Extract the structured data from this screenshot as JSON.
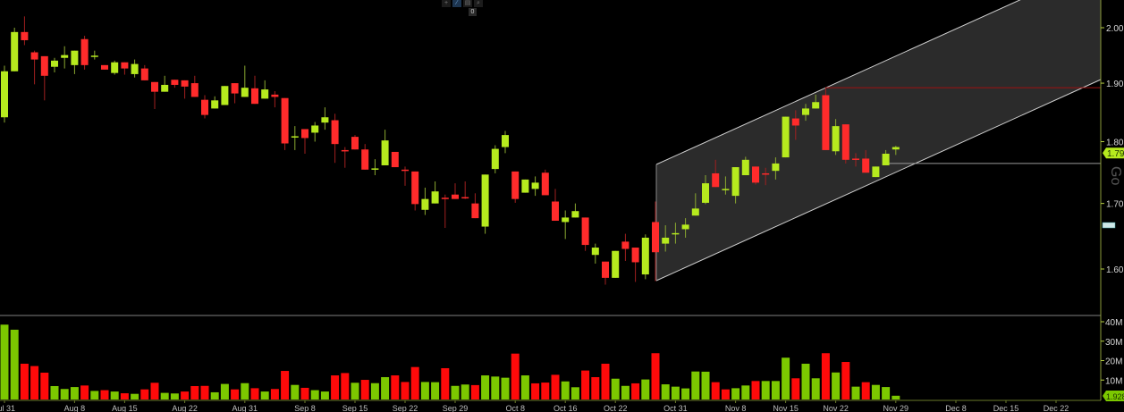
{
  "toolbar": {
    "icons": [
      "crosshair-icon",
      "draw-icon",
      "layout-icon",
      "zoom-icon"
    ],
    "badge": "0"
  },
  "side_label": "Go",
  "colors": {
    "up": "#b6ea1e",
    "down": "#ff2b2b",
    "volume_up": "#7cc800",
    "volume_down": "#ff0a0a",
    "axis": "#9aa84a",
    "channel_fill": "#2b2b2b"
  },
  "chart_data": {
    "type": "candlestick",
    "scale": "log",
    "ylim": [
      1.55,
      2.03
    ],
    "y_ticks": [
      "2.00",
      "1.90",
      "1.80",
      "1.70",
      "1.60"
    ],
    "x_ticks": [
      "Jul 31",
      "Aug 8",
      "Aug 15",
      "Aug 22",
      "Aug 31",
      "Sep 8",
      "Sep 15",
      "Sep 22",
      "Sep 29",
      "Oct 8",
      "Oct 16",
      "Oct 22",
      "Oct 31",
      "Nov 8",
      "Nov 15",
      "Nov 22",
      "Nov 29",
      "Dec 8",
      "Dec 15",
      "Dec 22"
    ],
    "last_price": "1.79",
    "candles_ohlc": [
      [
        1.841,
        1.931,
        1.832,
        1.921
      ],
      [
        1.921,
        2.0,
        1.921,
        1.992
      ],
      [
        1.992,
        2.021,
        1.968,
        1.977
      ],
      [
        1.955,
        1.958,
        1.898,
        1.942
      ],
      [
        1.948,
        1.948,
        1.87,
        1.913
      ],
      [
        1.929,
        1.945,
        1.919,
        1.94
      ],
      [
        1.945,
        1.966,
        1.926,
        1.95
      ],
      [
        1.932,
        1.958,
        1.916,
        1.958
      ],
      [
        1.979,
        1.985,
        1.924,
        1.932
      ],
      [
        1.948,
        1.958,
        1.942,
        1.949
      ],
      [
        1.932,
        1.932,
        1.924,
        1.924
      ],
      [
        1.918,
        1.94,
        1.915,
        1.937
      ],
      [
        1.937,
        1.937,
        1.915,
        1.926
      ],
      [
        1.916,
        1.942,
        1.91,
        1.934
      ],
      [
        1.926,
        1.932,
        1.905,
        1.905
      ],
      [
        1.902,
        1.902,
        1.855,
        1.885
      ],
      [
        1.885,
        1.913,
        1.885,
        1.897
      ],
      [
        1.906,
        1.906,
        1.892,
        1.897
      ],
      [
        1.905,
        1.905,
        1.873,
        1.894
      ],
      [
        1.9,
        1.913,
        1.876,
        1.876
      ],
      [
        1.871,
        1.879,
        1.839,
        1.845
      ],
      [
        1.856,
        1.877,
        1.856,
        1.87
      ],
      [
        1.862,
        1.895,
        1.862,
        1.895
      ],
      [
        1.9,
        1.9,
        1.865,
        1.882
      ],
      [
        1.876,
        1.931,
        1.876,
        1.892
      ],
      [
        1.891,
        1.913,
        1.864,
        1.864
      ],
      [
        1.873,
        1.905,
        1.873,
        1.889
      ],
      [
        1.88,
        1.886,
        1.858,
        1.876
      ],
      [
        1.874,
        1.874,
        1.786,
        1.797
      ],
      [
        1.808,
        1.826,
        1.786,
        1.809
      ],
      [
        1.821,
        1.821,
        1.78,
        1.806
      ],
      [
        1.815,
        1.833,
        1.8,
        1.827
      ],
      [
        1.832,
        1.858,
        1.82,
        1.841
      ],
      [
        1.836,
        1.847,
        1.765,
        1.796
      ],
      [
        1.786,
        1.791,
        1.757,
        1.785
      ],
      [
        1.808,
        1.811,
        1.787,
        1.787
      ],
      [
        1.787,
        1.796,
        1.754,
        1.754
      ],
      [
        1.755,
        1.771,
        1.745,
        1.756
      ],
      [
        1.761,
        1.82,
        1.761,
        1.802
      ],
      [
        1.783,
        1.783,
        1.758,
        1.758
      ],
      [
        1.754,
        1.759,
        1.728,
        1.753
      ],
      [
        1.751,
        1.751,
        1.689,
        1.699
      ],
      [
        1.69,
        1.725,
        1.682,
        1.707
      ],
      [
        1.7,
        1.735,
        1.7,
        1.719
      ],
      [
        1.709,
        1.714,
        1.662,
        1.708
      ],
      [
        1.714,
        1.732,
        1.707,
        1.707
      ],
      [
        1.71,
        1.735,
        1.707,
        1.709
      ],
      [
        1.7,
        1.716,
        1.677,
        1.677
      ],
      [
        1.664,
        1.746,
        1.653,
        1.746
      ],
      [
        1.755,
        1.794,
        1.748,
        1.788
      ],
      [
        1.791,
        1.818,
        1.781,
        1.811
      ],
      [
        1.751,
        1.751,
        1.701,
        1.707
      ],
      [
        1.717,
        1.738,
        1.717,
        1.738
      ],
      [
        1.723,
        1.743,
        1.712,
        1.733
      ],
      [
        1.749,
        1.754,
        1.713,
        1.713
      ],
      [
        1.703,
        1.723,
        1.673,
        1.673
      ],
      [
        1.671,
        1.689,
        1.645,
        1.678
      ],
      [
        1.678,
        1.7,
        1.678,
        1.688
      ],
      [
        1.678,
        1.678,
        1.627,
        1.636
      ],
      [
        1.621,
        1.638,
        1.608,
        1.632
      ],
      [
        1.611,
        1.611,
        1.577,
        1.587
      ],
      [
        1.587,
        1.627,
        1.587,
        1.627
      ],
      [
        1.641,
        1.653,
        1.612,
        1.63
      ],
      [
        1.632,
        1.632,
        1.581,
        1.61
      ],
      [
        1.592,
        1.652,
        1.585,
        1.647
      ],
      [
        1.671,
        1.703,
        1.582,
        1.625
      ],
      [
        1.638,
        1.666,
        1.626,
        1.647
      ],
      [
        1.653,
        1.67,
        1.638,
        1.654
      ],
      [
        1.66,
        1.677,
        1.647,
        1.667
      ],
      [
        1.681,
        1.716,
        1.681,
        1.692
      ],
      [
        1.701,
        1.745,
        1.699,
        1.732
      ],
      [
        1.748,
        1.77,
        1.726,
        1.726
      ],
      [
        1.722,
        1.743,
        1.714,
        1.723
      ],
      [
        1.712,
        1.758,
        1.7,
        1.758
      ],
      [
        1.745,
        1.775,
        1.745,
        1.77
      ],
      [
        1.759,
        1.759,
        1.73,
        1.733
      ],
      [
        1.748,
        1.757,
        1.729,
        1.747
      ],
      [
        1.752,
        1.774,
        1.738,
        1.764
      ],
      [
        1.774,
        1.842,
        1.774,
        1.842
      ],
      [
        1.839,
        1.853,
        1.803,
        1.827
      ],
      [
        1.845,
        1.864,
        1.835,
        1.856
      ],
      [
        1.856,
        1.88,
        1.856,
        1.867
      ],
      [
        1.879,
        1.892,
        1.786,
        1.786
      ],
      [
        1.784,
        1.838,
        1.778,
        1.826
      ],
      [
        1.829,
        1.829,
        1.764,
        1.77
      ],
      [
        1.772,
        1.781,
        1.759,
        1.771
      ],
      [
        1.772,
        1.786,
        1.749,
        1.749
      ],
      [
        1.742,
        1.759,
        1.742,
        1.759
      ],
      [
        1.761,
        1.786,
        1.761,
        1.78
      ],
      [
        1.787,
        1.793,
        1.778,
        1.791
      ]
    ],
    "volume": {
      "unit": "M",
      "ylim": [
        0,
        40
      ],
      "y_ticks": [
        "40M",
        "30M",
        "20M",
        "10M"
      ],
      "last_value": "1.928M",
      "values": [
        38.5,
        35.9,
        18.4,
        17.2,
        13.8,
        6.9,
        5.4,
        6.4,
        7.2,
        4.4,
        4.8,
        4.1,
        3.2,
        2.9,
        5.2,
        8.6,
        3.4,
        3.1,
        4.1,
        6.9,
        7.0,
        3.7,
        8.0,
        5.2,
        8.4,
        5.8,
        4.1,
        5.4,
        14.7,
        7.5,
        6.0,
        4.8,
        4.1,
        12.4,
        13.6,
        8.6,
        10.1,
        8.4,
        11.5,
        12.4,
        9.0,
        16.7,
        9.0,
        8.9,
        16.1,
        7.0,
        7.7,
        7.4,
        12.4,
        11.8,
        11.2,
        23.6,
        12.4,
        8.3,
        8.7,
        12.7,
        9.3,
        6.3,
        14.9,
        11.5,
        18.4,
        10.7,
        7.0,
        8.3,
        10.3,
        23.8,
        7.8,
        6.6,
        5.7,
        14.4,
        14.3,
        8.9,
        5.2,
        5.8,
        7.2,
        9.5,
        9.5,
        9.5,
        21.5,
        10.9,
        18.4,
        10.9,
        23.8,
        13.9,
        19.3,
        6.6,
        8.9,
        7.5,
        6.4,
        1.928
      ],
      "up": [
        1,
        1,
        0,
        0,
        0,
        1,
        1,
        1,
        0,
        1,
        0,
        1,
        0,
        1,
        0,
        0,
        1,
        1,
        0,
        0,
        0,
        1,
        1,
        0,
        1,
        0,
        1,
        0,
        0,
        1,
        0,
        1,
        1,
        0,
        0,
        1,
        0,
        1,
        1,
        0,
        0,
        0,
        1,
        1,
        0,
        1,
        1,
        0,
        1,
        1,
        1,
        0,
        1,
        0,
        0,
        0,
        1,
        1,
        0,
        0,
        0,
        1,
        1,
        0,
        1,
        0,
        1,
        1,
        1,
        1,
        1,
        0,
        0,
        1,
        1,
        0,
        1,
        1,
        1,
        0,
        1,
        1,
        0,
        1,
        0,
        1,
        0,
        1,
        1,
        1
      ]
    },
    "annotations": {
      "resistance_level": 1.892,
      "support_level": 1.764
    }
  }
}
